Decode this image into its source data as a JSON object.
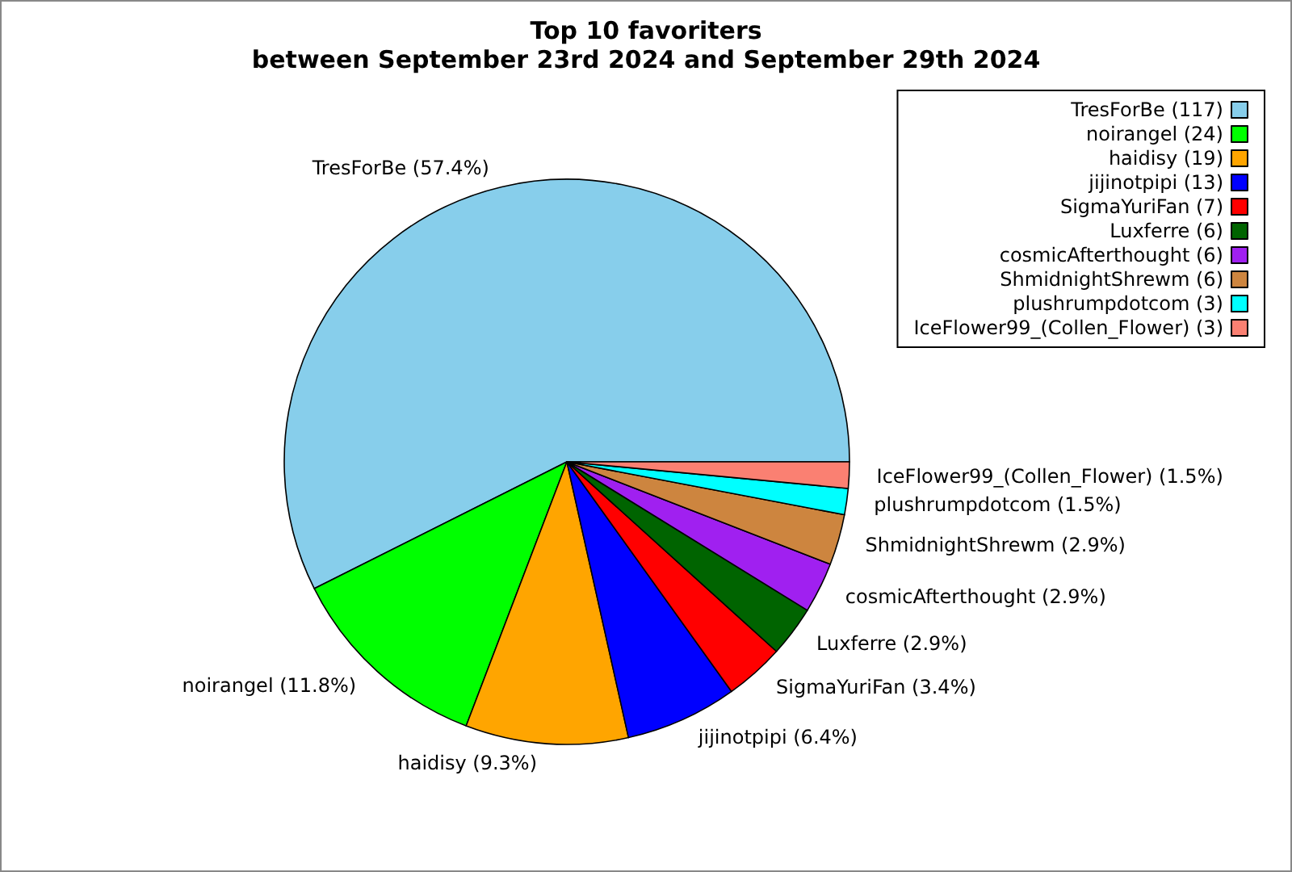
{
  "chart_data": {
    "type": "pie",
    "title": "Top 10 favoriters\nbetween September 23rd 2024 and September 29th 2024",
    "categories": [
      "TresForBe (117)",
      "noirangel (24)",
      "haidisy (19)",
      "jijinotpipi (13)",
      "SigmaYuriFan (7)",
      "Luxferre (6)",
      "cosmicAfterthought (6)",
      "ShmidnightShrewm (6)",
      "plushrumpdotcom (3)",
      "IceFlower99_(Collen_Flower) (3)"
    ],
    "values": [
      57.4,
      11.8,
      9.3,
      6.4,
      3.4,
      2.9,
      2.9,
      2.9,
      1.5,
      1.5
    ],
    "colors": [
      "#87ceeb",
      "#00ff00",
      "#ffa500",
      "#0000ff",
      "#ff0000",
      "#006400",
      "#a020f0",
      "#cd853f",
      "#00ffff",
      "#fa8072"
    ],
    "value_labels": [
      "TresForBe (57.4%)",
      "noirangel (11.8%)",
      "haidisy (9.3%)",
      "jijinotpipi (6.4%)",
      "SigmaYuriFan (3.4%)",
      "Luxferre (2.9%)",
      "cosmicAfterthought (2.9%)",
      "ShmidnightShrewm (2.9%)",
      "plushrumpdotcom (1.5%)",
      "IceFlower99_(Collen_Flower) (1.5%)"
    ],
    "legend": "top right"
  }
}
